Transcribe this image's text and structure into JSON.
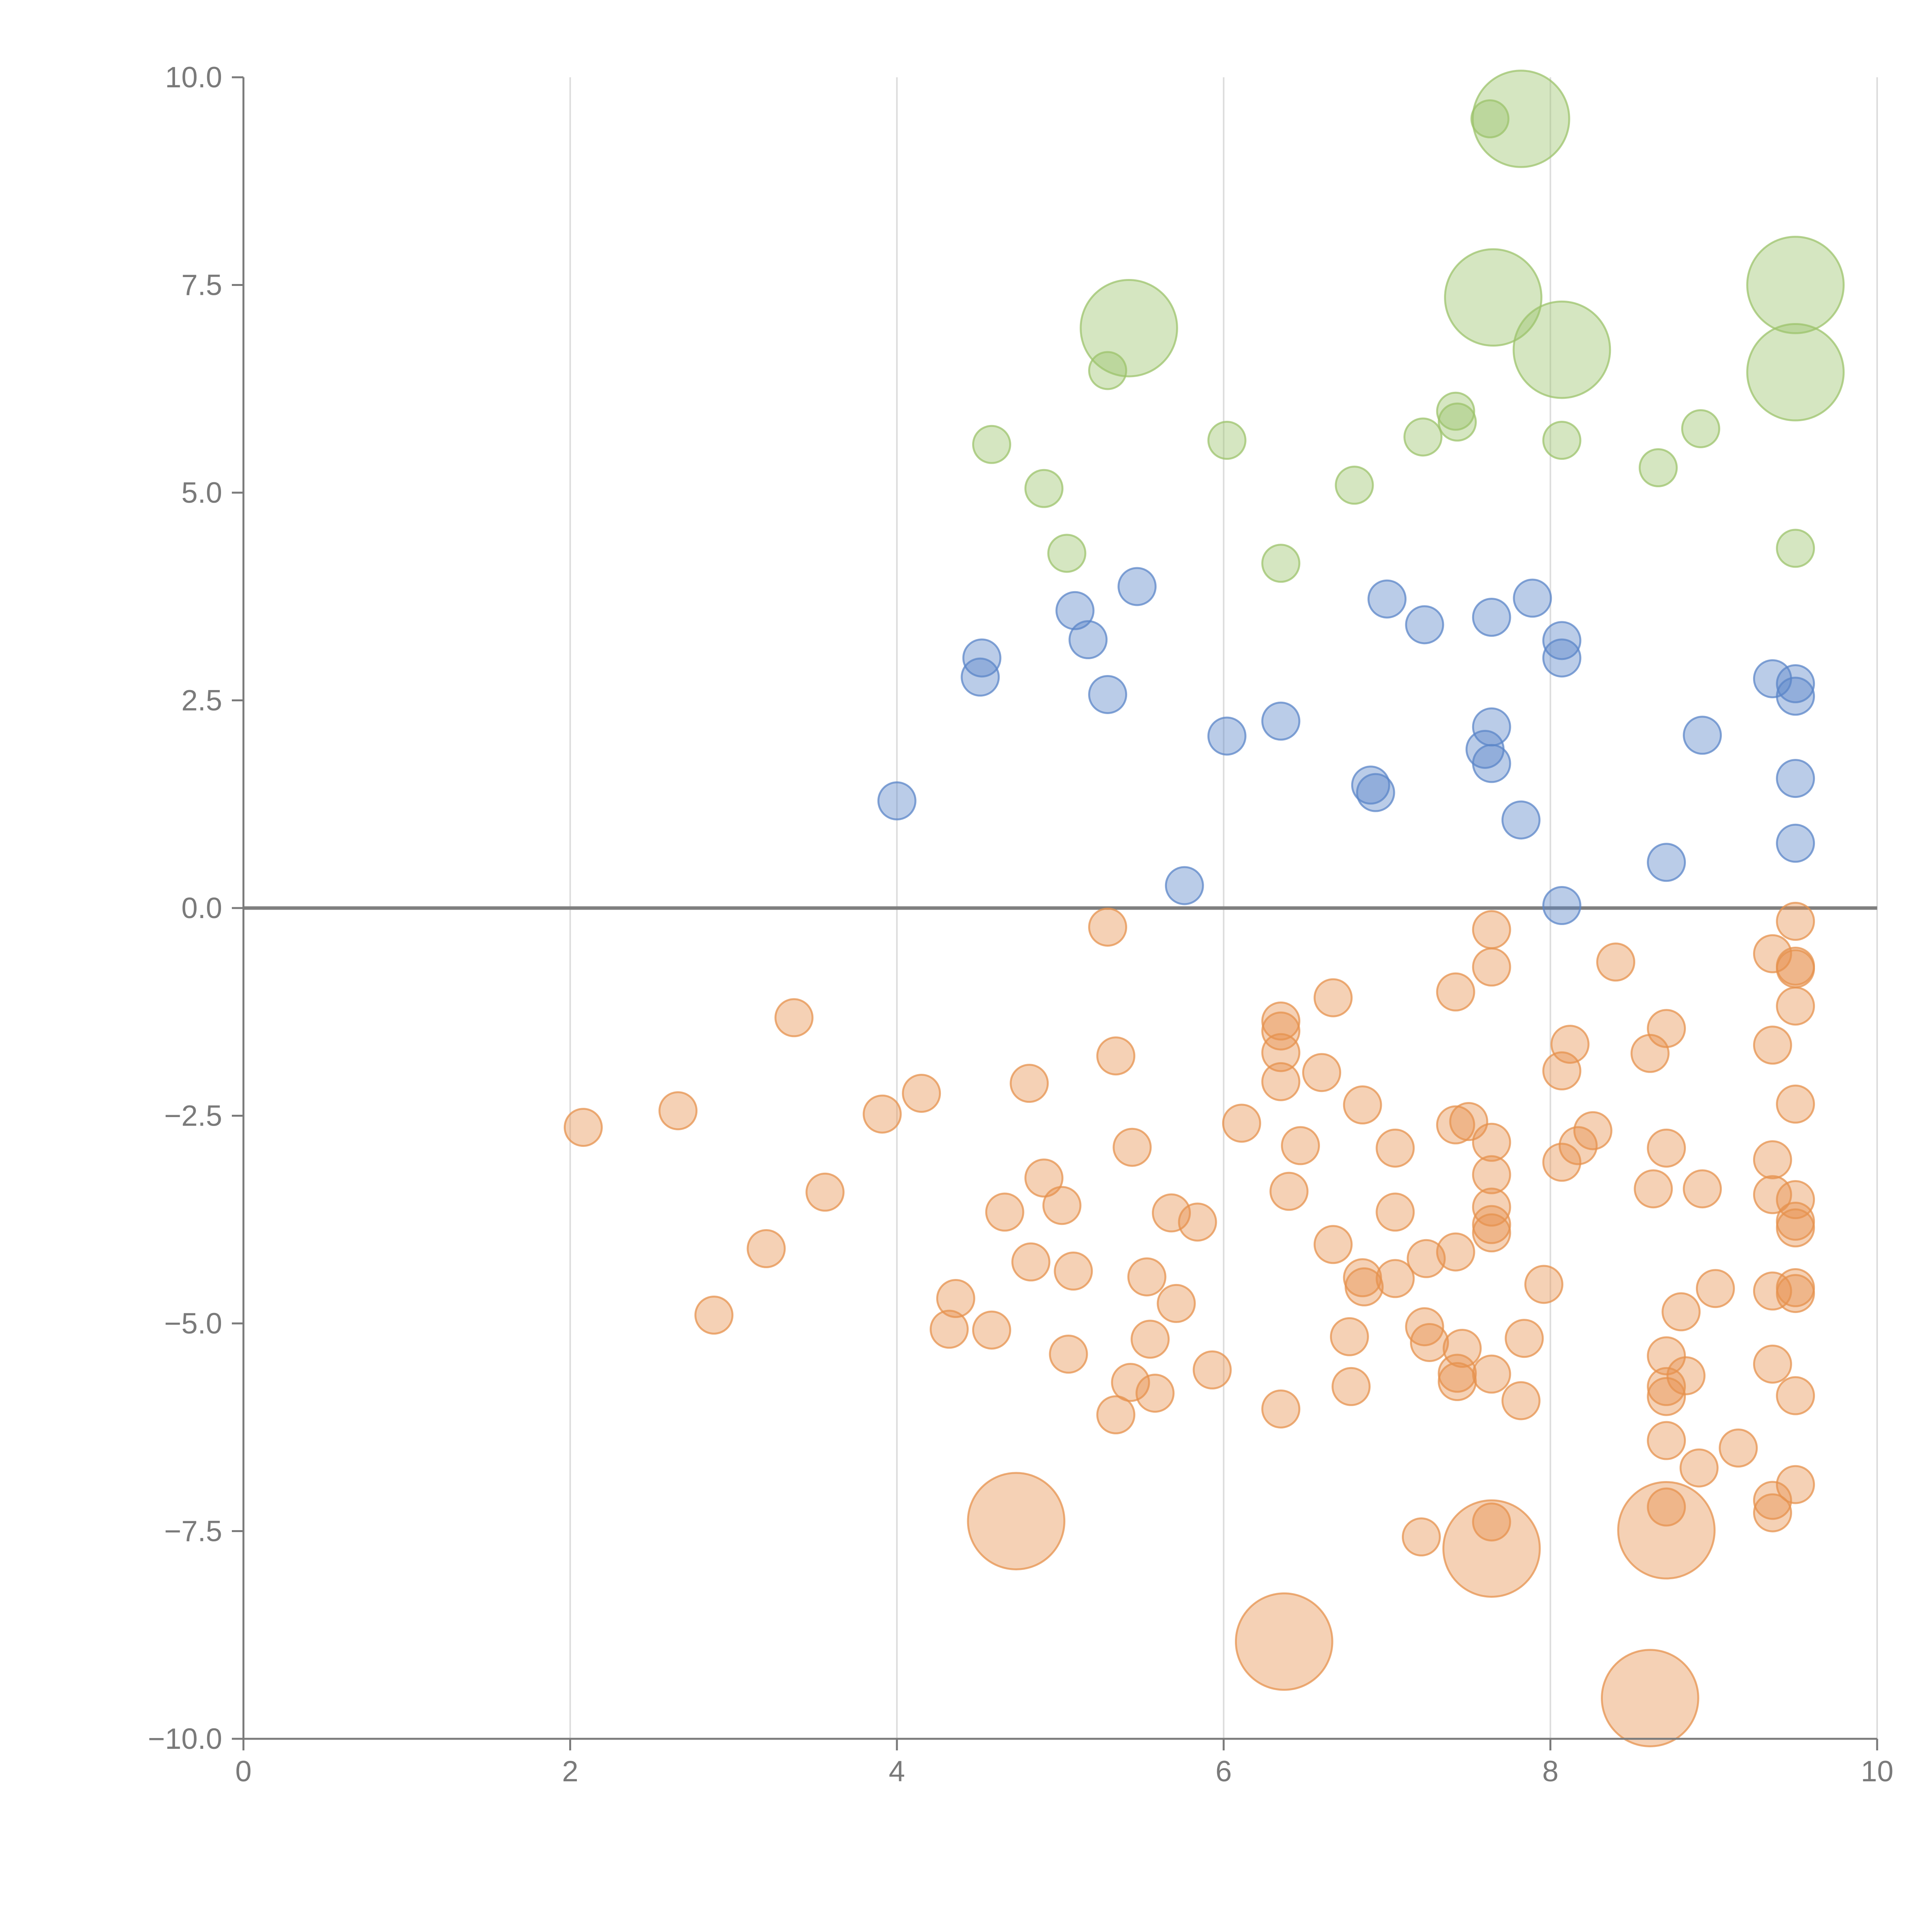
{
  "chart_data": {
    "type": "scatter",
    "title": "",
    "xlabel": "",
    "ylabel": "",
    "xlim": [
      0,
      10
    ],
    "ylim": [
      -10,
      10
    ],
    "x_ticks": [
      "0",
      "2",
      "4",
      "6",
      "8",
      "10"
    ],
    "y_ticks": [
      "10.0",
      "7.5",
      "5.0",
      "2.5",
      "0.0",
      "−2.5",
      "−5.0",
      "−7.5",
      "−10.0"
    ],
    "grid": "vertical gridlines only",
    "reference_line_y": 0,
    "colors": {
      "green": "#9cc36b",
      "blue": "#5b86c8",
      "orange": "#e6924e",
      "axis": "#7a7a7a",
      "grid": "#dcdcdc",
      "zero_line": "#7f7f7f"
    },
    "series": [
      {
        "color": "green",
        "points": [
          [
            7.63,
            9.5,
            1
          ],
          [
            7.82,
            9.5,
            2.6
          ],
          [
            5.42,
            6.98,
            2.6
          ],
          [
            7.65,
            7.35,
            2.6
          ],
          [
            8.07,
            6.72,
            2.6
          ],
          [
            9.5,
            7.5,
            2.6
          ],
          [
            9.5,
            6.45,
            2.6
          ],
          [
            5.29,
            6.47,
            1
          ],
          [
            4.58,
            5.58,
            1
          ],
          [
            6.02,
            5.63,
            1
          ],
          [
            7.22,
            5.67,
            1
          ],
          [
            7.42,
            5.98,
            1
          ],
          [
            7.43,
            5.85,
            1
          ],
          [
            8.07,
            5.63,
            1
          ],
          [
            8.92,
            5.77,
            1
          ],
          [
            8.66,
            5.3,
            1
          ],
          [
            4.9,
            5.05,
            1
          ],
          [
            6.8,
            5.09,
            1
          ],
          [
            5.04,
            4.27,
            1
          ],
          [
            6.35,
            4.15,
            1
          ],
          [
            9.5,
            4.33,
            1
          ]
        ]
      },
      {
        "color": "blue",
        "points": [
          [
            5.47,
            3.87,
            1
          ],
          [
            5.09,
            3.58,
            1
          ],
          [
            5.17,
            3.23,
            1
          ],
          [
            4.52,
            3.01,
            1
          ],
          [
            4.51,
            2.78,
            1
          ],
          [
            5.29,
            2.57,
            1
          ],
          [
            4.0,
            1.29,
            1
          ],
          [
            6.02,
            2.07,
            1
          ],
          [
            6.35,
            2.25,
            1
          ],
          [
            7.0,
            3.72,
            1
          ],
          [
            7.23,
            3.41,
            1
          ],
          [
            7.64,
            3.5,
            1
          ],
          [
            7.89,
            3.73,
            1
          ],
          [
            8.07,
            3.22,
            1
          ],
          [
            8.07,
            3.01,
            1
          ],
          [
            7.64,
            2.18,
            1
          ],
          [
            7.6,
            1.91,
            1
          ],
          [
            7.64,
            1.74,
            1
          ],
          [
            6.9,
            1.48,
            1
          ],
          [
            6.93,
            1.39,
            1
          ],
          [
            7.82,
            1.06,
            1
          ],
          [
            5.76,
            0.27,
            1
          ],
          [
            8.07,
            0.03,
            1
          ],
          [
            8.71,
            0.55,
            1
          ],
          [
            9.36,
            2.76,
            1
          ],
          [
            9.5,
            2.7,
            1
          ],
          [
            9.5,
            2.55,
            1
          ],
          [
            8.93,
            2.08,
            1
          ],
          [
            9.5,
            1.56,
            1
          ],
          [
            9.5,
            0.78,
            1
          ]
        ]
      },
      {
        "color": "orange",
        "points": [
          [
            5.29,
            -0.23,
            1
          ],
          [
            7.64,
            -0.26,
            1
          ],
          [
            7.64,
            -0.71,
            1
          ],
          [
            8.4,
            -0.65,
            1
          ],
          [
            9.5,
            -0.16,
            1
          ],
          [
            9.36,
            -0.55,
            1
          ],
          [
            9.5,
            -0.7,
            1
          ],
          [
            9.5,
            -0.73,
            1
          ],
          [
            9.5,
            -1.18,
            1
          ],
          [
            3.37,
            -1.32,
            1
          ],
          [
            6.67,
            -1.08,
            1
          ],
          [
            7.42,
            -1.01,
            1
          ],
          [
            6.35,
            -1.36,
            1
          ],
          [
            6.35,
            -1.48,
            1
          ],
          [
            6.35,
            -1.74,
            1
          ],
          [
            5.34,
            -1.78,
            1
          ],
          [
            8.71,
            -1.45,
            1
          ],
          [
            8.12,
            -1.64,
            1
          ],
          [
            9.36,
            -1.65,
            1
          ],
          [
            8.61,
            -1.75,
            1
          ],
          [
            8.07,
            -1.96,
            1
          ],
          [
            6.6,
            -1.98,
            1
          ],
          [
            6.35,
            -2.09,
            1
          ],
          [
            4.81,
            -2.11,
            1
          ],
          [
            4.15,
            -2.23,
            1
          ],
          [
            2.66,
            -2.44,
            1
          ],
          [
            3.91,
            -2.48,
            1
          ],
          [
            6.85,
            -2.37,
            1
          ],
          [
            9.5,
            -2.36,
            1
          ],
          [
            2.08,
            -2.64,
            1
          ],
          [
            6.11,
            -2.59,
            1
          ],
          [
            7.42,
            -2.61,
            1
          ],
          [
            7.5,
            -2.57,
            1
          ],
          [
            8.26,
            -2.68,
            1
          ],
          [
            5.44,
            -2.88,
            1
          ],
          [
            6.47,
            -2.86,
            1
          ],
          [
            7.05,
            -2.89,
            1
          ],
          [
            7.64,
            -2.82,
            1
          ],
          [
            8.71,
            -2.89,
            1
          ],
          [
            8.17,
            -2.86,
            1
          ],
          [
            8.07,
            -3.06,
            1
          ],
          [
            9.36,
            -3.03,
            1
          ],
          [
            4.9,
            -3.25,
            1
          ],
          [
            7.64,
            -3.21,
            1
          ],
          [
            3.56,
            -3.42,
            1
          ],
          [
            6.4,
            -3.41,
            1
          ],
          [
            8.63,
            -3.38,
            1
          ],
          [
            8.93,
            -3.38,
            1
          ],
          [
            9.36,
            -3.45,
            1
          ],
          [
            9.5,
            -3.51,
            1
          ],
          [
            5.01,
            -3.58,
            1
          ],
          [
            4.66,
            -3.66,
            1
          ],
          [
            5.68,
            -3.67,
            1
          ],
          [
            7.05,
            -3.66,
            1
          ],
          [
            7.64,
            -3.6,
            1
          ],
          [
            5.84,
            -3.78,
            1
          ],
          [
            7.64,
            -3.81,
            1
          ],
          [
            7.64,
            -3.91,
            1
          ],
          [
            9.5,
            -3.77,
            1
          ],
          [
            9.5,
            -3.85,
            1
          ],
          [
            3.2,
            -4.1,
            1
          ],
          [
            6.67,
            -4.05,
            1
          ],
          [
            7.42,
            -4.14,
            1
          ],
          [
            4.82,
            -4.26,
            1
          ],
          [
            7.24,
            -4.22,
            1
          ],
          [
            5.08,
            -4.37,
            1
          ],
          [
            5.53,
            -4.44,
            1
          ],
          [
            6.85,
            -4.45,
            1
          ],
          [
            7.05,
            -4.46,
            1
          ],
          [
            6.86,
            -4.56,
            1
          ],
          [
            7.96,
            -4.53,
            1
          ],
          [
            9.01,
            -4.58,
            1
          ],
          [
            9.36,
            -4.61,
            1
          ],
          [
            9.5,
            -4.57,
            1
          ],
          [
            9.5,
            -4.64,
            1
          ],
          [
            4.36,
            -4.7,
            1
          ],
          [
            5.71,
            -4.76,
            1
          ],
          [
            8.8,
            -4.86,
            1
          ],
          [
            2.88,
            -4.9,
            1
          ],
          [
            4.32,
            -5.07,
            1
          ],
          [
            4.58,
            -5.08,
            1
          ],
          [
            7.23,
            -5.04,
            1
          ],
          [
            6.77,
            -5.16,
            1
          ],
          [
            5.55,
            -5.19,
            1
          ],
          [
            7.26,
            -5.23,
            1
          ],
          [
            7.84,
            -5.18,
            1
          ],
          [
            5.05,
            -5.37,
            1
          ],
          [
            7.46,
            -5.3,
            1
          ],
          [
            8.71,
            -5.39,
            1
          ],
          [
            9.36,
            -5.49,
            1
          ],
          [
            5.93,
            -5.56,
            1
          ],
          [
            7.43,
            -5.6,
            1
          ],
          [
            7.64,
            -5.61,
            1
          ],
          [
            8.83,
            -5.63,
            1
          ],
          [
            5.43,
            -5.71,
            1
          ],
          [
            7.43,
            -5.7,
            1
          ],
          [
            6.78,
            -5.76,
            1
          ],
          [
            8.71,
            -5.76,
            1
          ],
          [
            5.58,
            -5.84,
            1
          ],
          [
            8.71,
            -5.88,
            1
          ],
          [
            9.5,
            -5.87,
            1
          ],
          [
            7.82,
            -5.93,
            1
          ],
          [
            6.35,
            -6.03,
            1
          ],
          [
            5.34,
            -6.1,
            1
          ],
          [
            8.71,
            -6.41,
            1
          ],
          [
            9.15,
            -6.5,
            1
          ],
          [
            8.91,
            -6.74,
            1
          ],
          [
            9.5,
            -6.94,
            1
          ],
          [
            9.36,
            -7.13,
            1
          ],
          [
            9.36,
            -7.28,
            1
          ],
          [
            8.71,
            -7.21,
            1
          ],
          [
            7.64,
            -7.39,
            1
          ],
          [
            7.21,
            -7.57,
            1
          ],
          [
            4.73,
            -7.38,
            2.6
          ],
          [
            7.64,
            -7.71,
            2.6
          ],
          [
            8.71,
            -7.49,
            2.6
          ],
          [
            6.37,
            -8.83,
            2.6
          ],
          [
            8.61,
            -9.51,
            2.6
          ]
        ]
      }
    ]
  }
}
